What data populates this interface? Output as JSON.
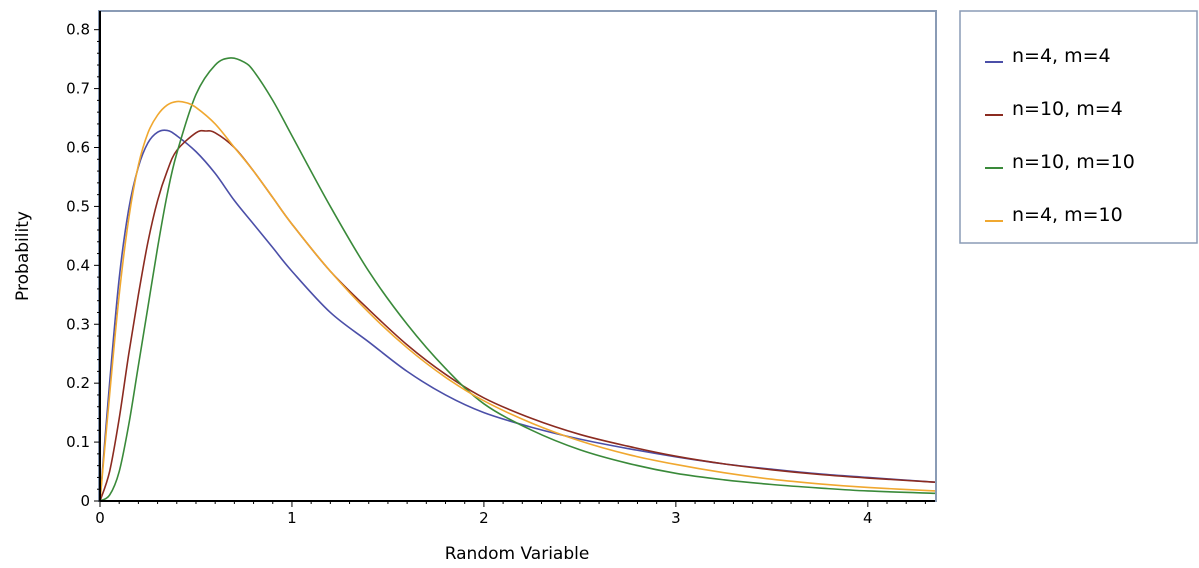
{
  "chart_data": {
    "type": "line",
    "title": "",
    "xlabel": "Random Variable",
    "ylabel": "Probability",
    "xlim": [
      0,
      4.35
    ],
    "ylim": [
      0,
      0.83
    ],
    "x_ticks": [
      0,
      1,
      2,
      3,
      4
    ],
    "x_tick_labels": [
      "0",
      "1",
      "2",
      "3",
      "4"
    ],
    "y_ticks": [
      0,
      0.1,
      0.2,
      0.3,
      0.4,
      0.5,
      0.6,
      0.7,
      0.8
    ],
    "y_tick_labels": [
      "0",
      "0.1",
      "0.2",
      "0.3",
      "0.4",
      "0.5",
      "0.6",
      "0.7",
      "0.8"
    ],
    "grid": false,
    "legend_position": "right-top",
    "series": [
      {
        "name": "n=4, m=4",
        "color": "#4b4fa8",
        "x": [
          0,
          0.05,
          0.1,
          0.15,
          0.2,
          0.25,
          0.3,
          0.35,
          0.4,
          0.5,
          0.6,
          0.7,
          0.8,
          0.9,
          1.0,
          1.2,
          1.4,
          1.6,
          1.8,
          2.0,
          2.25,
          2.5,
          2.75,
          3.0,
          3.25,
          3.5,
          3.75,
          4.0,
          4.35
        ],
        "y": [
          0,
          0.2,
          0.378,
          0.496,
          0.567,
          0.608,
          0.626,
          0.629,
          0.62,
          0.593,
          0.556,
          0.51,
          0.47,
          0.43,
          0.39,
          0.32,
          0.27,
          0.22,
          0.18,
          0.15,
          0.125,
          0.105,
          0.089,
          0.075,
          0.063,
          0.054,
          0.046,
          0.04,
          0.032
        ]
      },
      {
        "name": "n=10, m=4",
        "color": "#8b2b20",
        "x": [
          0,
          0.05,
          0.1,
          0.15,
          0.2,
          0.25,
          0.3,
          0.35,
          0.4,
          0.5,
          0.55,
          0.6,
          0.7,
          0.8,
          0.9,
          1.0,
          1.2,
          1.4,
          1.6,
          1.8,
          2.0,
          2.25,
          2.5,
          2.75,
          3.0,
          3.25,
          3.5,
          3.75,
          4.0,
          4.35
        ],
        "y": [
          0,
          0.05,
          0.14,
          0.25,
          0.35,
          0.44,
          0.51,
          0.56,
          0.595,
          0.625,
          0.628,
          0.625,
          0.6,
          0.56,
          0.515,
          0.47,
          0.39,
          0.325,
          0.265,
          0.215,
          0.175,
          0.14,
          0.113,
          0.093,
          0.076,
          0.063,
          0.053,
          0.045,
          0.039,
          0.032
        ]
      },
      {
        "name": "n=10, m=10",
        "color": "#3a8a3a",
        "x": [
          0,
          0.05,
          0.1,
          0.15,
          0.2,
          0.25,
          0.3,
          0.35,
          0.4,
          0.5,
          0.6,
          0.68,
          0.75,
          0.8,
          0.9,
          1.0,
          1.2,
          1.4,
          1.6,
          1.8,
          2.0,
          2.25,
          2.5,
          2.75,
          3.0,
          3.25,
          3.5,
          3.75,
          4.0,
          4.35
        ],
        "y": [
          0,
          0.01,
          0.05,
          0.13,
          0.23,
          0.33,
          0.43,
          0.52,
          0.59,
          0.69,
          0.74,
          0.752,
          0.745,
          0.73,
          0.68,
          0.62,
          0.5,
          0.39,
          0.3,
          0.225,
          0.165,
          0.12,
          0.087,
          0.064,
          0.047,
          0.036,
          0.028,
          0.022,
          0.017,
          0.013
        ]
      },
      {
        "name": "n=4, m=10",
        "color": "#f0a830",
        "x": [
          0,
          0.05,
          0.1,
          0.15,
          0.2,
          0.25,
          0.3,
          0.35,
          0.4,
          0.45,
          0.5,
          0.6,
          0.7,
          0.8,
          0.9,
          1.0,
          1.2,
          1.4,
          1.6,
          1.8,
          2.0,
          2.25,
          2.5,
          2.75,
          3.0,
          3.25,
          3.5,
          3.75,
          4.0,
          4.35
        ],
        "y": [
          0,
          0.18,
          0.35,
          0.48,
          0.57,
          0.625,
          0.655,
          0.672,
          0.678,
          0.676,
          0.668,
          0.64,
          0.6,
          0.56,
          0.515,
          0.47,
          0.39,
          0.32,
          0.26,
          0.21,
          0.17,
          0.132,
          0.102,
          0.079,
          0.062,
          0.048,
          0.037,
          0.029,
          0.023,
          0.017
        ]
      }
    ]
  }
}
